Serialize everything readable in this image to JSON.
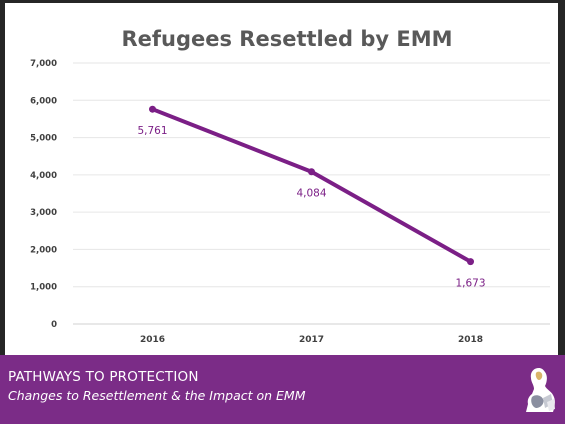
{
  "footer": {
    "title": "PATHWAYS TO PROTECTION",
    "subtitle": "Changes to Resettlement & the Impact on EMM"
  },
  "colors": {
    "line": "#7b1f86",
    "footer_bg": "#7b2c87",
    "title": "#595959"
  },
  "chart_data": {
    "type": "line",
    "title": "Refugees Resettled by EMM",
    "xlabel": "",
    "ylabel": "",
    "categories": [
      "2016",
      "2017",
      "2018"
    ],
    "series": [
      {
        "values": [
          5761,
          4084,
          1673
        ]
      }
    ],
    "data_labels": [
      "5,761",
      "4,084",
      "1,673"
    ],
    "yticks": [
      "0",
      "1,000",
      "2,000",
      "3,000",
      "4,000",
      "5,000",
      "6,000",
      "7,000"
    ],
    "ylim": [
      0,
      7000
    ],
    "grid": true,
    "legend": "none"
  }
}
